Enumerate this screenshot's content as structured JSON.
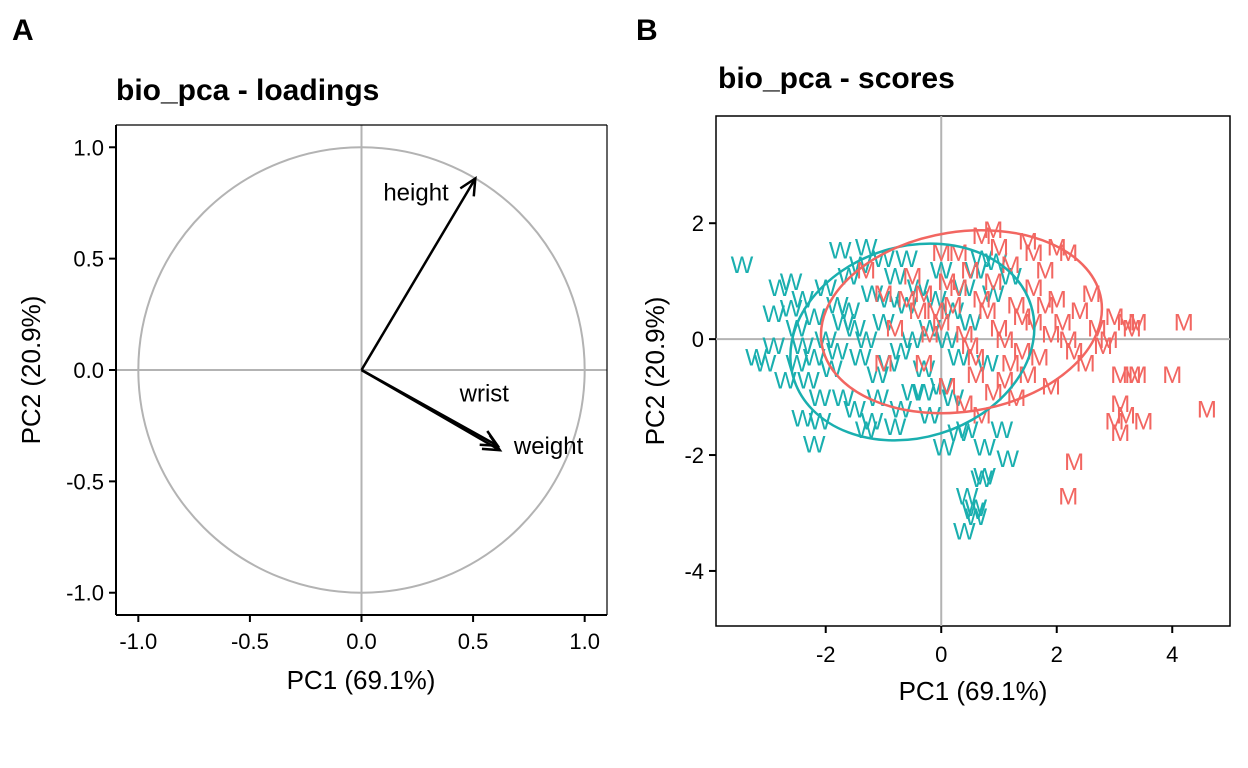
{
  "figure": {
    "panel_labels": [
      "A",
      "B"
    ]
  },
  "chart_data": [
    {
      "panel": "A",
      "type": "scatter",
      "title": "bio_pca - loadings",
      "xlabel": "PC1 (69.1%)",
      "ylabel": "PC2 (20.9%)",
      "xlim": [
        -1.1,
        1.1
      ],
      "ylim": [
        -1.1,
        1.1
      ],
      "xticks": [
        -1.0,
        -0.5,
        0.0,
        0.5,
        1.0
      ],
      "xtick_labels": [
        "-1.0",
        "-0.5",
        "0.0",
        "0.5",
        "1.0"
      ],
      "yticks": [
        1.0,
        0.5,
        0.0,
        -0.5,
        -1.0
      ],
      "ytick_labels": [
        "1.0",
        "0.5",
        "0.0",
        "-0.5",
        "-1.0"
      ],
      "unit_circle": true,
      "reference_lines": {
        "x": 0,
        "y": 0
      },
      "loadings": [
        {
          "name": "height",
          "x": 0.51,
          "y": 0.86
        },
        {
          "name": "wrist",
          "x": 0.61,
          "y": -0.34
        },
        {
          "name": "weight",
          "x": 0.62,
          "y": -0.36
        }
      ],
      "colors": {
        "circle": "#b3b3b3",
        "arrow": "#000000",
        "refline": "#b3b3b3"
      }
    },
    {
      "panel": "B",
      "type": "scatter",
      "title": "bio_pca - scores",
      "xlabel": "PC1 (69.1%)",
      "ylabel": "PC2 (20.9%)",
      "xlim": [
        -3.9,
        5.0
      ],
      "ylim": [
        -4.95,
        3.85
      ],
      "xticks": [
        -2,
        0,
        2,
        4
      ],
      "xtick_labels": [
        "-2",
        "0",
        "2",
        "4"
      ],
      "yticks": [
        2,
        0,
        -2,
        -4
      ],
      "ytick_labels": [
        "2",
        "0",
        "-2",
        "-4"
      ],
      "reference_lines": {
        "x": 0,
        "y": 0
      },
      "series": [
        {
          "name": "W",
          "color": "#1aafaf",
          "ellipse": {
            "cx": -0.5,
            "cy": -0.05,
            "rx": 2.15,
            "ry": 1.65,
            "angle_deg": -17
          },
          "points": [
            [
              -3.45,
              1.3
            ],
            [
              -2.9,
              0.45
            ],
            [
              -3.2,
              -0.3
            ],
            [
              -3.05,
              -0.4
            ],
            [
              -1.75,
              1.55
            ],
            [
              -1.3,
              1.6
            ],
            [
              -2.2,
              -1.8
            ],
            [
              -2.4,
              -1.35
            ],
            [
              -2.1,
              -1.4
            ],
            [
              -1.3,
              -1.55
            ],
            [
              -0.8,
              -1.5
            ],
            [
              0.05,
              -1.85
            ],
            [
              0.45,
              -1.55
            ],
            [
              0.75,
              -1.85
            ],
            [
              1.05,
              -1.55
            ],
            [
              1.15,
              -2.05
            ],
            [
              0.75,
              -2.35
            ],
            [
              0.7,
              -2.4
            ],
            [
              0.6,
              -2.9
            ],
            [
              0.55,
              -2.95
            ],
            [
              0.45,
              -2.7
            ],
            [
              0.6,
              -3.05
            ],
            [
              0.4,
              -3.3
            ],
            [
              -2.6,
              0.55
            ],
            [
              -2.5,
              0.2
            ],
            [
              -2.4,
              -0.1
            ],
            [
              -2.2,
              0.4
            ],
            [
              -2.0,
              0.9
            ],
            [
              -1.8,
              0.6
            ],
            [
              -1.6,
              1.1
            ],
            [
              -1.5,
              0.2
            ],
            [
              -1.4,
              -0.3
            ],
            [
              -1.2,
              0.8
            ],
            [
              -1.0,
              0.3
            ],
            [
              -0.9,
              -0.4
            ],
            [
              -0.8,
              1.1
            ],
            [
              -0.6,
              0.6
            ],
            [
              -0.5,
              -0.9
            ],
            [
              -0.3,
              -0.5
            ],
            [
              -0.2,
              0.2
            ],
            [
              0.0,
              -0.8
            ],
            [
              0.2,
              0.5
            ],
            [
              0.3,
              -0.3
            ],
            [
              -2.7,
              -0.7
            ],
            [
              -2.3,
              -0.7
            ],
            [
              -1.9,
              -0.5
            ],
            [
              -1.7,
              -1.0
            ],
            [
              -1.5,
              -1.2
            ],
            [
              -1.1,
              -1.0
            ],
            [
              -0.7,
              -1.2
            ],
            [
              -0.2,
              -1.3
            ],
            [
              0.2,
              -1.0
            ],
            [
              0.4,
              0.9
            ],
            [
              0.6,
              1.2
            ],
            [
              0.9,
              0.8
            ],
            [
              1.2,
              1.1
            ],
            [
              0.8,
              -0.4
            ],
            [
              -2.0,
              0.0
            ],
            [
              -1.3,
              0.0
            ],
            [
              -0.4,
              0.9
            ],
            [
              -1.0,
              1.4
            ],
            [
              -2.6,
              1.0
            ],
            [
              -1.8,
              -0.2
            ],
            [
              -1.1,
              -0.6
            ],
            [
              -0.5,
              0.0
            ],
            [
              0.1,
              0.0
            ],
            [
              -2.1,
              -1.0
            ],
            [
              -2.9,
              -0.1
            ],
            [
              -1.6,
              0.5
            ],
            [
              -0.9,
              0.7
            ],
            [
              -0.1,
              0.7
            ],
            [
              0.5,
              0.3
            ],
            [
              -2.4,
              0.7
            ],
            [
              -1.2,
              -1.4
            ],
            [
              0.3,
              -1.6
            ],
            [
              -2.8,
              0.9
            ],
            [
              -1.4,
              1.3
            ],
            [
              0.0,
              1.2
            ],
            [
              0.7,
              1.4
            ],
            [
              -0.7,
              -0.2
            ],
            [
              -2.2,
              -0.3
            ],
            [
              -1.7,
              0.3
            ],
            [
              -0.3,
              -0.9
            ],
            [
              -2.5,
              -0.4
            ],
            [
              -0.6,
              1.4
            ],
            [
              0.95,
              1.35
            ]
          ]
        },
        {
          "name": "M",
          "color": "#f26661",
          "ellipse": {
            "cx": 0.35,
            "cy": 0.3,
            "rx": 2.45,
            "ry": 1.55,
            "angle_deg": -9
          },
          "points": [
            [
              0.7,
              1.8
            ],
            [
              0.9,
              1.9
            ],
            [
              1.0,
              1.6
            ],
            [
              1.5,
              1.7
            ],
            [
              1.6,
              1.5
            ],
            [
              2.0,
              1.6
            ],
            [
              2.2,
              1.5
            ],
            [
              0.0,
              1.5
            ],
            [
              0.3,
              1.5
            ],
            [
              -1.3,
              1.2
            ],
            [
              -0.5,
              1.1
            ],
            [
              -0.3,
              0.8
            ],
            [
              -1.0,
              0.8
            ],
            [
              0.1,
              1.0
            ],
            [
              0.5,
              1.2
            ],
            [
              1.2,
              1.3
            ],
            [
              1.8,
              1.2
            ],
            [
              2.6,
              0.8
            ],
            [
              3.0,
              0.4
            ],
            [
              3.2,
              0.3
            ],
            [
              3.4,
              0.3
            ],
            [
              3.3,
              0.2
            ],
            [
              4.2,
              0.3
            ],
            [
              2.9,
              0.0
            ],
            [
              2.8,
              -0.1
            ],
            [
              2.3,
              -0.2
            ],
            [
              3.1,
              -0.6
            ],
            [
              3.3,
              -0.6
            ],
            [
              3.4,
              -0.6
            ],
            [
              4.0,
              -0.6
            ],
            [
              4.6,
              -1.2
            ],
            [
              3.1,
              -1.1
            ],
            [
              3.2,
              -1.3
            ],
            [
              3.0,
              -1.4
            ],
            [
              3.1,
              -1.6
            ],
            [
              3.5,
              -1.4
            ],
            [
              2.3,
              -2.1
            ],
            [
              2.2,
              -2.7
            ],
            [
              1.4,
              -0.2
            ],
            [
              1.6,
              0.3
            ],
            [
              1.8,
              0.6
            ],
            [
              1.9,
              0.1
            ],
            [
              2.0,
              0.7
            ],
            [
              2.1,
              0.3
            ],
            [
              1.2,
              -0.4
            ],
            [
              1.0,
              0.2
            ],
            [
              0.8,
              0.5
            ],
            [
              0.6,
              -0.3
            ],
            [
              0.4,
              0.1
            ],
            [
              0.2,
              0.6
            ],
            [
              0.0,
              0.3
            ],
            [
              -0.2,
              0.1
            ],
            [
              -0.4,
              0.5
            ],
            [
              -0.6,
              0.7
            ],
            [
              -0.8,
              0.2
            ],
            [
              -1.0,
              -0.4
            ],
            [
              -0.3,
              -0.4
            ],
            [
              0.1,
              -0.8
            ],
            [
              0.4,
              -1.1
            ],
            [
              0.6,
              -0.6
            ],
            [
              0.9,
              -0.9
            ],
            [
              1.1,
              -0.7
            ],
            [
              1.3,
              -1.0
            ],
            [
              0.7,
              -1.3
            ],
            [
              1.5,
              -0.6
            ],
            [
              1.7,
              -0.3
            ],
            [
              1.9,
              -0.8
            ],
            [
              2.4,
              0.5
            ],
            [
              2.5,
              -0.4
            ],
            [
              1.6,
              0.9
            ],
            [
              1.3,
              0.6
            ],
            [
              0.9,
              1.0
            ],
            [
              0.3,
              0.9
            ],
            [
              -0.1,
              0.5
            ],
            [
              2.2,
              0.0
            ],
            [
              0.5,
              -0.1
            ],
            [
              1.1,
              0.0
            ],
            [
              1.4,
              0.4
            ],
            [
              0.7,
              0.7
            ],
            [
              2.7,
              0.2
            ]
          ]
        }
      ]
    }
  ]
}
